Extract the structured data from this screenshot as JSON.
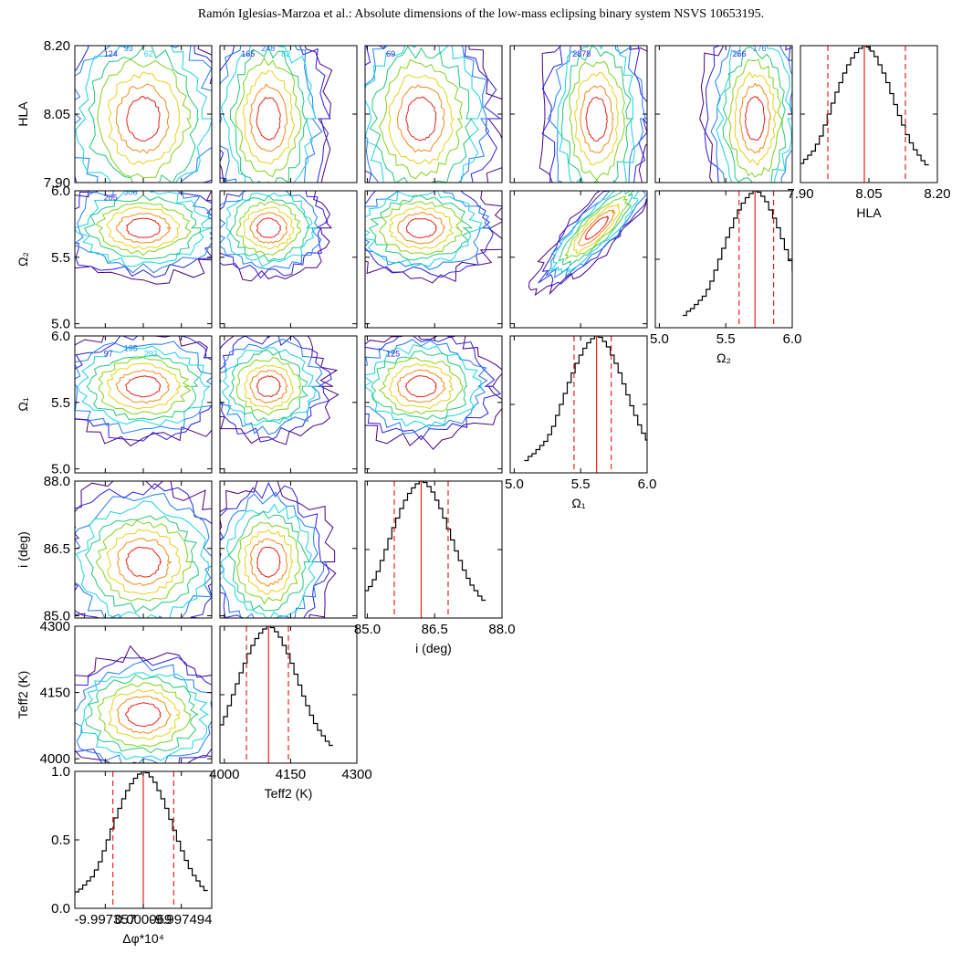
{
  "header": {
    "running_title": "Ramón Iglesias-Marzoa et al.: Absolute dimensions of the low-mass eclipsing binary system NSVS 10653195."
  },
  "chart_data": {
    "type": "corner",
    "parameters": [
      {
        "key": "dphi",
        "label": "Δφ*10⁴",
        "range": [
          -9.9974,
          -9.99749
        ],
        "ticks": [
          "-9.997357",
          "0.000069",
          "-9.997494"
        ],
        "tick_values": [
          -9.99742,
          -9.997445,
          -9.99747
        ],
        "center": -9.997445,
        "sigma_lo": -9.997425,
        "sigma_hi": -9.997465
      },
      {
        "key": "teff2",
        "label": "Teff2 (K)",
        "range": [
          3990,
          4300
        ],
        "ticks": [
          "4000",
          "4150",
          "4300"
        ],
        "tick_values": [
          4000,
          4150,
          4300
        ],
        "center": 4100,
        "sigma_lo": 4050,
        "sigma_hi": 4145
      },
      {
        "key": "i",
        "label": "i (deg)",
        "range": [
          84.95,
          88.0
        ],
        "ticks": [
          "85.0",
          "86.5",
          "88.0"
        ],
        "tick_values": [
          85.0,
          86.5,
          88.0
        ],
        "center": 86.2,
        "sigma_lo": 85.6,
        "sigma_hi": 86.8
      },
      {
        "key": "omega1",
        "label": "Ω₁",
        "range": [
          4.97,
          6.0
        ],
        "ticks": [
          "5.0",
          "5.5",
          "6.0"
        ],
        "tick_values": [
          5.0,
          5.5,
          6.0
        ],
        "center": 5.62,
        "sigma_lo": 5.45,
        "sigma_hi": 5.73
      },
      {
        "key": "omega2",
        "label": "Ω₂",
        "range": [
          4.97,
          6.0
        ],
        "ticks": [
          "5.0",
          "5.5",
          "6.0"
        ],
        "tick_values": [
          5.0,
          5.5,
          6.0
        ],
        "center": 5.72,
        "sigma_lo": 5.6,
        "sigma_hi": 5.86
      },
      {
        "key": "hla",
        "label": "HLA",
        "range": [
          7.9,
          8.2
        ],
        "ticks": [
          "7.90",
          "8.05",
          "8.20"
        ],
        "tick_values": [
          7.9,
          8.05,
          8.2
        ],
        "center": 8.04,
        "sigma_lo": 7.96,
        "sigma_hi": 8.13
      }
    ],
    "histogram_y": {
      "range": [
        0.0,
        1.0
      ],
      "ticks": [
        "0.0",
        "0.5",
        "1.0"
      ],
      "tick_values": [
        0.0,
        0.5,
        1.0
      ]
    },
    "histogram_shape": [
      0.09,
      0.12,
      0.14,
      0.17,
      0.2,
      0.23,
      0.28,
      0.34,
      0.42,
      0.5,
      0.58,
      0.66,
      0.73,
      0.8,
      0.86,
      0.91,
      0.95,
      0.98,
      1.0,
      0.99,
      0.96,
      0.92,
      0.86,
      0.8,
      0.73,
      0.65,
      0.57,
      0.49,
      0.42,
      0.35,
      0.29,
      0.24,
      0.2,
      0.16,
      0.13
    ],
    "contour_labels": [
      {
        "row": 0,
        "col": 0,
        "text": "124"
      },
      {
        "row": 0,
        "col": 0,
        "text": "93"
      },
      {
        "row": 0,
        "col": 0,
        "text": "62"
      },
      {
        "row": 0,
        "col": 1,
        "text": "165"
      },
      {
        "row": 0,
        "col": 1,
        "text": "248"
      },
      {
        "row": 0,
        "col": 1,
        "text": "82"
      },
      {
        "row": 0,
        "col": 2,
        "text": "69"
      },
      {
        "row": 0,
        "col": 3,
        "text": "2878"
      },
      {
        "row": 0,
        "col": 4,
        "text": "256"
      },
      {
        "row": 0,
        "col": 4,
        "text": "176"
      },
      {
        "row": 1,
        "col": 0,
        "text": "205"
      },
      {
        "row": 1,
        "col": 0,
        "text": "308"
      },
      {
        "row": 2,
        "col": 0,
        "text": "97"
      },
      {
        "row": 2,
        "col": 0,
        "text": "195"
      },
      {
        "row": 2,
        "col": 0,
        "text": "292"
      },
      {
        "row": 2,
        "col": 2,
        "text": "125"
      }
    ],
    "colors": {
      "contours": [
        "#4b0082",
        "#2a1fe6",
        "#1d7cf2",
        "#19d2e6",
        "#22c77a",
        "#7fd41c",
        "#e6d21a",
        "#f28a1a",
        "#e8231a"
      ],
      "hist_line": "#000000",
      "median_line": "#e8231a"
    }
  }
}
